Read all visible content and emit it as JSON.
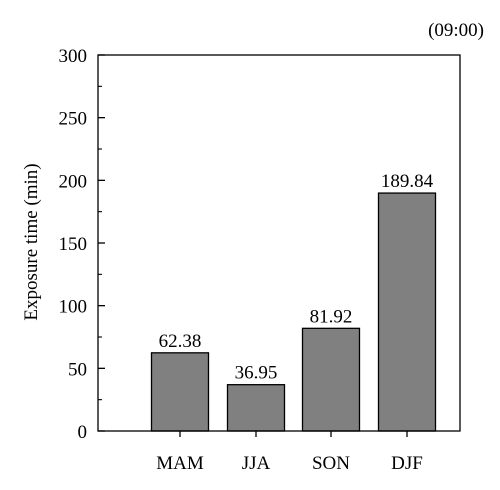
{
  "chart_data": {
    "type": "bar",
    "title": "",
    "annotation": "(09:00)",
    "xlabel": "",
    "ylabel": "Exposure time (min)",
    "categories": [
      "MAM",
      "JJA",
      "SON",
      "DJF"
    ],
    "values": [
      62.38,
      36.95,
      81.92,
      189.84
    ],
    "value_labels": [
      "62.38",
      "36.95",
      "81.92",
      "189.84"
    ],
    "ylim": [
      0,
      300
    ],
    "yticks": [
      0,
      50,
      100,
      150,
      200,
      250,
      300
    ],
    "ytick_labels": [
      "0",
      "50",
      "100",
      "150",
      "200",
      "250",
      "300"
    ],
    "grid": false,
    "legend": "none",
    "bar_color": "#808080",
    "bar_edge_color": "#000000"
  }
}
